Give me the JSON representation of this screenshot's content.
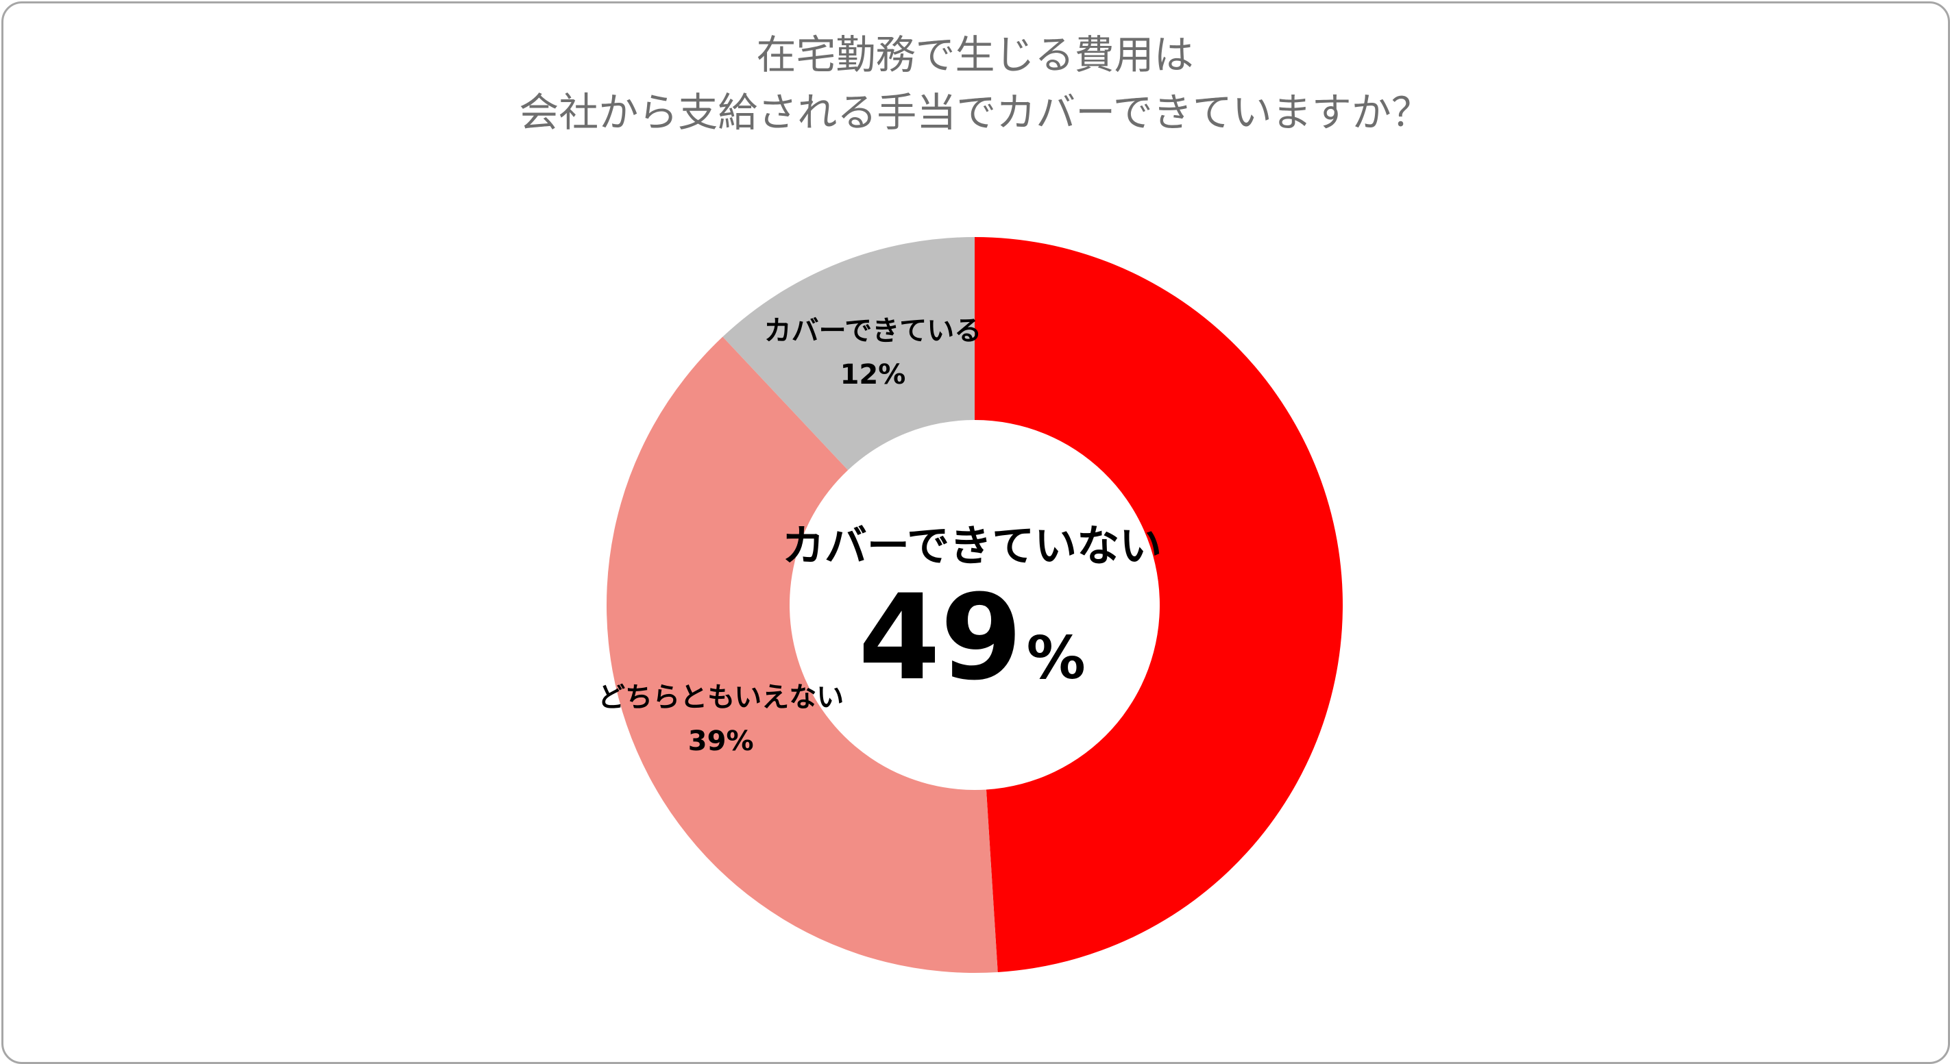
{
  "title": {
    "line1": "在宅勤務で生じる費用は",
    "line2": "会社から支給される手当でカバーできていますか？"
  },
  "center": {
    "label": "カバーできていない",
    "value": "49",
    "unit": "%"
  },
  "chart_data": {
    "type": "pie",
    "variant": "donut",
    "title": "在宅勤務で生じる費用は会社から支給される手当でカバーできていますか？",
    "categories": [
      "カバーできていない",
      "どちらともいえない",
      "カバーできている"
    ],
    "values": [
      49,
      39,
      12
    ],
    "unit": "%",
    "colors": [
      "#ff0000",
      "#f28e86",
      "#bfbfbf"
    ],
    "legend": "none",
    "data_labels": [
      {
        "category": "カバーできていない",
        "text": "",
        "pct": ""
      },
      {
        "category": "どちらともいえない",
        "text": "どちらともいえない",
        "pct": "39%"
      },
      {
        "category": "カバーできている",
        "text": "カバーできている",
        "pct": "12%"
      }
    ]
  }
}
